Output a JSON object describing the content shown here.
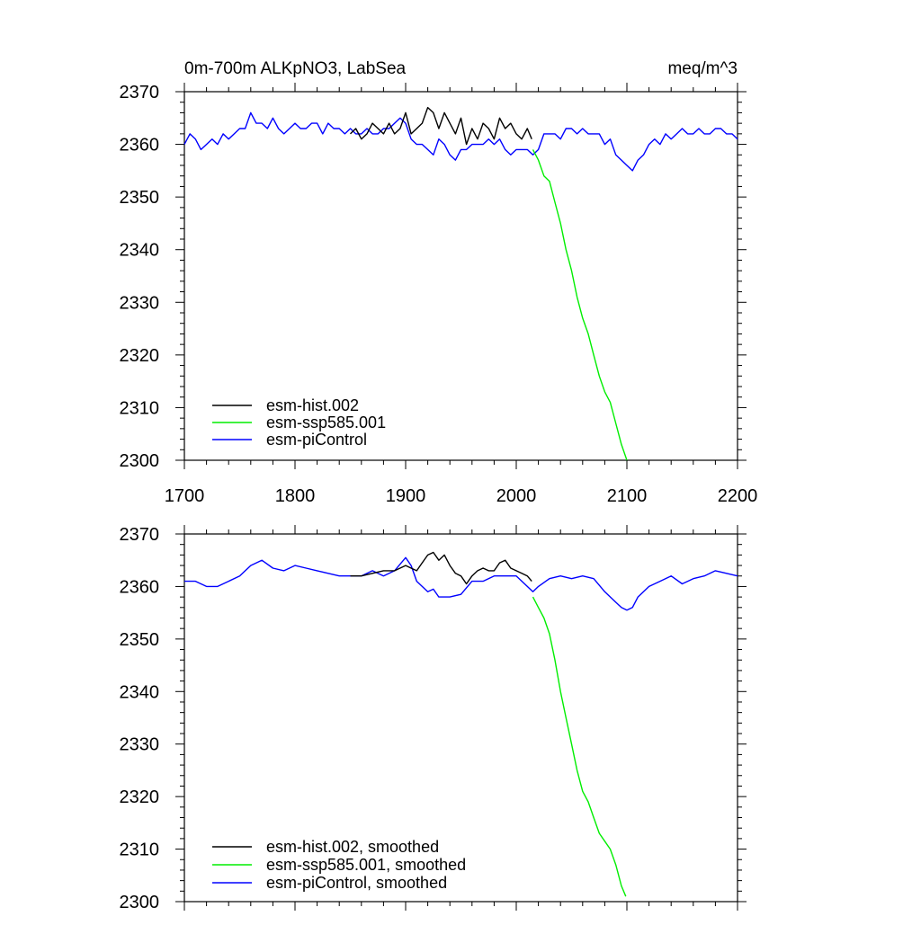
{
  "chart_data": [
    {
      "type": "line",
      "title_left": "0m-700m ALKpNO3, LabSea",
      "title_right": "meq/m^3",
      "xlim": [
        1700,
        2200
      ],
      "ylim": [
        2300,
        2370
      ],
      "xticks": [
        "1700",
        "1800",
        "1900",
        "2000",
        "2100",
        "2200"
      ],
      "yticks": [
        "2300",
        "2310",
        "2320",
        "2330",
        "2340",
        "2350",
        "2360",
        "2370"
      ],
      "grid": false,
      "legend_position": "bottom-left",
      "series": [
        {
          "name": "esm-hist.002",
          "color": "#000000",
          "x": [
            1850,
            1855,
            1860,
            1865,
            1870,
            1875,
            1880,
            1885,
            1890,
            1895,
            1900,
            1905,
            1910,
            1915,
            1920,
            1925,
            1930,
            1935,
            1940,
            1945,
            1950,
            1955,
            1960,
            1965,
            1970,
            1975,
            1980,
            1985,
            1990,
            1995,
            2000,
            2005,
            2010,
            2014
          ],
          "y": [
            2362,
            2363,
            2361,
            2362,
            2364,
            2363,
            2362,
            2364,
            2362,
            2363,
            2366,
            2362,
            2363,
            2364,
            2367,
            2366,
            2363,
            2366,
            2364,
            2362,
            2365,
            2360,
            2363,
            2361,
            2364,
            2363,
            2361,
            2365,
            2363,
            2364,
            2362,
            2361,
            2363,
            2361
          ]
        },
        {
          "name": "esm-ssp585.001",
          "color": "#00ee00",
          "x": [
            2015,
            2020,
            2025,
            2030,
            2035,
            2040,
            2045,
            2050,
            2055,
            2060,
            2065,
            2070,
            2075,
            2080,
            2085,
            2090,
            2095,
            2100
          ],
          "y": [
            2359,
            2357,
            2354,
            2353,
            2349,
            2345,
            2340,
            2336,
            2331,
            2327,
            2324,
            2320,
            2316,
            2313,
            2311,
            2307,
            2303,
            2300
          ]
        },
        {
          "name": "esm-piControl",
          "color": "#0000ff",
          "x": [
            1700,
            1705,
            1710,
            1715,
            1720,
            1725,
            1730,
            1735,
            1740,
            1745,
            1750,
            1755,
            1760,
            1765,
            1770,
            1775,
            1780,
            1785,
            1790,
            1795,
            1800,
            1805,
            1810,
            1815,
            1820,
            1825,
            1830,
            1835,
            1840,
            1845,
            1850,
            1855,
            1860,
            1865,
            1870,
            1875,
            1880,
            1885,
            1890,
            1895,
            1900,
            1905,
            1910,
            1915,
            1920,
            1925,
            1930,
            1935,
            1940,
            1945,
            1950,
            1955,
            1960,
            1965,
            1970,
            1975,
            1980,
            1985,
            1990,
            1995,
            2000,
            2005,
            2010,
            2015,
            2020,
            2025,
            2030,
            2035,
            2040,
            2045,
            2050,
            2055,
            2060,
            2065,
            2070,
            2075,
            2080,
            2085,
            2090,
            2095,
            2100,
            2105,
            2110,
            2115,
            2120,
            2125,
            2130,
            2135,
            2140,
            2145,
            2150,
            2155,
            2160,
            2165,
            2170,
            2175,
            2180,
            2185,
            2190,
            2195,
            2200
          ],
          "y": [
            2360,
            2362,
            2361,
            2359,
            2360,
            2361,
            2360,
            2362,
            2361,
            2362,
            2363,
            2363,
            2366,
            2364,
            2364,
            2363,
            2365,
            2363,
            2362,
            2363,
            2364,
            2363,
            2363,
            2364,
            2364,
            2362,
            2364,
            2363,
            2363,
            2362,
            2363,
            2362,
            2362,
            2363,
            2362,
            2362,
            2363,
            2363,
            2364,
            2365,
            2364,
            2361,
            2360,
            2360,
            2359,
            2358,
            2361,
            2360,
            2358,
            2357,
            2359,
            2359,
            2360,
            2360,
            2360,
            2361,
            2360,
            2361,
            2359,
            2358,
            2359,
            2359,
            2359,
            2358,
            2359,
            2362,
            2362,
            2362,
            2361,
            2363,
            2363,
            2362,
            2363,
            2362,
            2362,
            2362,
            2360,
            2361,
            2358,
            2357,
            2356,
            2355,
            2357,
            2358,
            2360,
            2361,
            2360,
            2362,
            2361,
            2362,
            2363,
            2362,
            2362,
            2363,
            2362,
            2362,
            2363,
            2363,
            2362,
            2362,
            2361
          ]
        }
      ]
    },
    {
      "type": "line",
      "xlim": [
        1700,
        2200
      ],
      "ylim": [
        2300,
        2370
      ],
      "yticks": [
        "2300",
        "2310",
        "2320",
        "2330",
        "2340",
        "2350",
        "2360",
        "2370"
      ],
      "grid": false,
      "legend_position": "bottom-left",
      "series": [
        {
          "name": "esm-hist.002, smoothed",
          "color": "#000000",
          "x": [
            1850,
            1860,
            1870,
            1880,
            1890,
            1900,
            1905,
            1910,
            1915,
            1920,
            1925,
            1930,
            1935,
            1940,
            1945,
            1950,
            1955,
            1960,
            1965,
            1970,
            1975,
            1980,
            1985,
            1990,
            1995,
            2000,
            2005,
            2010,
            2014
          ],
          "y": [
            2362,
            2362,
            2362.5,
            2363,
            2363,
            2364,
            2363.5,
            2363,
            2364.5,
            2366,
            2366.5,
            2365,
            2366,
            2364,
            2362.5,
            2362,
            2360.5,
            2362,
            2363,
            2363.5,
            2363,
            2363,
            2364.5,
            2365,
            2363.5,
            2363,
            2362.5,
            2362,
            2361
          ]
        },
        {
          "name": "esm-ssp585.001, smoothed",
          "color": "#00ee00",
          "x": [
            2015,
            2020,
            2025,
            2030,
            2035,
            2040,
            2045,
            2050,
            2055,
            2060,
            2065,
            2070,
            2075,
            2080,
            2085,
            2090,
            2095,
            2099
          ],
          "y": [
            2358,
            2356,
            2354,
            2351,
            2346,
            2340,
            2335,
            2330,
            2325,
            2321,
            2319,
            2316,
            2313,
            2311.5,
            2310,
            2307,
            2303,
            2301
          ]
        },
        {
          "name": "esm-piControl, smoothed",
          "color": "#0000ff",
          "x": [
            1700,
            1710,
            1720,
            1730,
            1740,
            1750,
            1760,
            1770,
            1780,
            1790,
            1800,
            1810,
            1820,
            1830,
            1840,
            1850,
            1860,
            1870,
            1880,
            1890,
            1900,
            1905,
            1910,
            1915,
            1920,
            1925,
            1930,
            1940,
            1950,
            1960,
            1970,
            1980,
            1990,
            2000,
            2010,
            2015,
            2020,
            2030,
            2040,
            2050,
            2060,
            2070,
            2080,
            2090,
            2095,
            2100,
            2105,
            2110,
            2120,
            2130,
            2140,
            2150,
            2160,
            2170,
            2180,
            2190,
            2200
          ],
          "y": [
            2361,
            2361,
            2360,
            2360,
            2361,
            2362,
            2364,
            2365,
            2363.5,
            2363,
            2364,
            2363.5,
            2363,
            2362.5,
            2362,
            2362,
            2362,
            2363,
            2362,
            2363,
            2365.5,
            2364,
            2361,
            2360,
            2359,
            2359.5,
            2358,
            2358,
            2358.5,
            2361,
            2361,
            2362,
            2362,
            2362,
            2360,
            2359,
            2360,
            2361.5,
            2362,
            2361.5,
            2362,
            2361.5,
            2359,
            2357,
            2356,
            2355.5,
            2356,
            2358,
            2360,
            2361,
            2362,
            2360.5,
            2361.5,
            2362,
            2363,
            2362.5,
            2362
          ]
        }
      ]
    }
  ]
}
